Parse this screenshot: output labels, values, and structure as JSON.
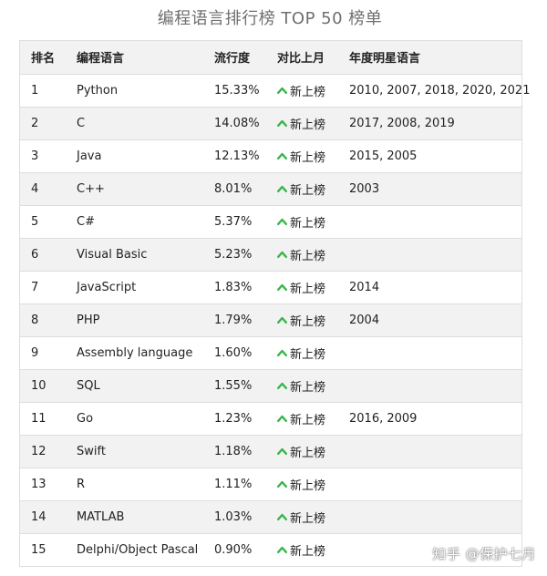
{
  "page": {
    "title": "编程语言排行榜 TOP 50 榜单"
  },
  "table": {
    "headers": [
      "排名",
      "编程语言",
      "流行度",
      "对比上月",
      "年度明星语言"
    ],
    "rows": [
      {
        "rank": "1",
        "language": "Python",
        "popularity": "15.33%",
        "change": "新上榜",
        "star_years": "2010, 2007, 2018, 2020, 2021"
      },
      {
        "rank": "2",
        "language": "C",
        "popularity": "14.08%",
        "change": "新上榜",
        "star_years": "2017, 2008, 2019"
      },
      {
        "rank": "3",
        "language": "Java",
        "popularity": "12.13%",
        "change": "新上榜",
        "star_years": "2015, 2005"
      },
      {
        "rank": "4",
        "language": "C++",
        "popularity": "8.01%",
        "change": "新上榜",
        "star_years": "2003"
      },
      {
        "rank": "5",
        "language": "C#",
        "popularity": "5.37%",
        "change": "新上榜",
        "star_years": ""
      },
      {
        "rank": "6",
        "language": "Visual Basic",
        "popularity": "5.23%",
        "change": "新上榜",
        "star_years": ""
      },
      {
        "rank": "7",
        "language": "JavaScript",
        "popularity": "1.83%",
        "change": "新上榜",
        "star_years": "2014"
      },
      {
        "rank": "8",
        "language": "PHP",
        "popularity": "1.79%",
        "change": "新上榜",
        "star_years": "2004"
      },
      {
        "rank": "9",
        "language": "Assembly language",
        "popularity": "1.60%",
        "change": "新上榜",
        "star_years": ""
      },
      {
        "rank": "10",
        "language": "SQL",
        "popularity": "1.55%",
        "change": "新上榜",
        "star_years": ""
      },
      {
        "rank": "11",
        "language": "Go",
        "popularity": "1.23%",
        "change": "新上榜",
        "star_years": "2016, 2009"
      },
      {
        "rank": "12",
        "language": "Swift",
        "popularity": "1.18%",
        "change": "新上榜",
        "star_years": ""
      },
      {
        "rank": "13",
        "language": "R",
        "popularity": "1.11%",
        "change": "新上榜",
        "star_years": ""
      },
      {
        "rank": "14",
        "language": "MATLAB",
        "popularity": "1.03%",
        "change": "新上榜",
        "star_years": ""
      },
      {
        "rank": "15",
        "language": "Delphi/Object Pascal",
        "popularity": "0.90%",
        "change": "新上榜",
        "star_years": ""
      }
    ]
  },
  "icons": {
    "change_icon": "chevron-up-icon"
  },
  "colors": {
    "up_arrow": "#3ab54a",
    "row_alt": "#f2f2f2",
    "title": "#6f6f6f"
  },
  "watermark": {
    "text": "知乎 @保护七月"
  }
}
